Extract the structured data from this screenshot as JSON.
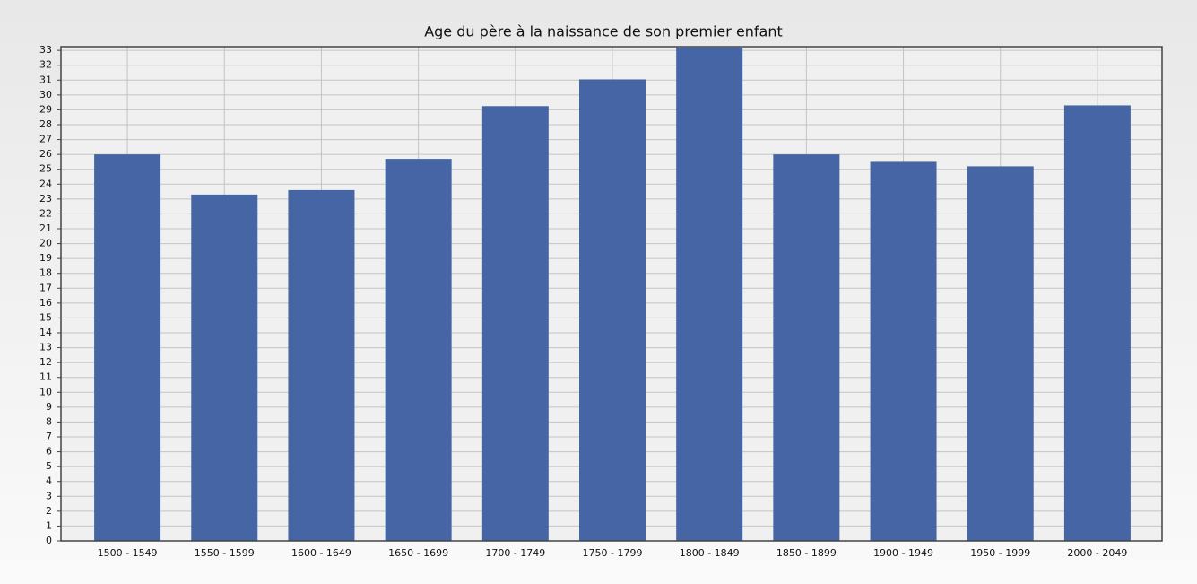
{
  "chart_data": {
    "type": "bar",
    "title": "Age du père à la naissance de son premier enfant",
    "categories": [
      "1500 - 1549",
      "1550 - 1599",
      "1600 - 1649",
      "1650 - 1699",
      "1700 - 1749",
      "1750 - 1799",
      "1800 - 1849",
      "1850 - 1899",
      "1900 - 1949",
      "1950 - 1999",
      "2000 - 2049"
    ],
    "values": [
      26.0,
      23.3,
      23.6,
      25.7,
      29.25,
      31.05,
      33.2,
      26.0,
      25.5,
      25.2,
      29.3
    ],
    "color": "#4565a4",
    "ylim": [
      0,
      33.25
    ],
    "yticks": [
      0,
      1,
      2,
      3,
      4,
      5,
      6,
      7,
      8,
      9,
      10,
      11,
      12,
      13,
      14,
      15,
      16,
      17,
      18,
      19,
      20,
      21,
      22,
      23,
      24,
      25,
      26,
      27,
      28,
      29,
      30,
      31,
      32,
      33
    ],
    "grid": true
  }
}
